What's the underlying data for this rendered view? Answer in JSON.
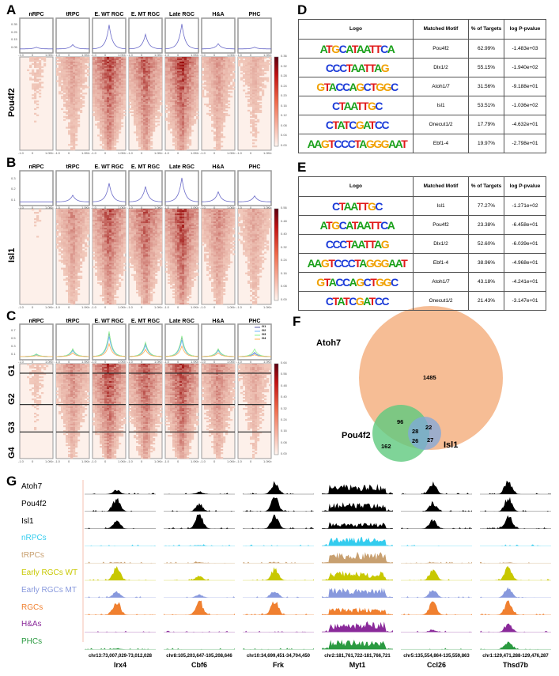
{
  "panels": {
    "A": "A",
    "B": "B",
    "C": "C",
    "D": "D",
    "E": "E",
    "F": "F",
    "G": "G"
  },
  "columns": [
    "nRPC",
    "tRPC",
    "E. WT RGC",
    "E. MT RGC",
    "Late RGC",
    "H&A",
    "PHC"
  ],
  "x_ticks": [
    "-1.0",
    "0",
    "1.0Kb"
  ],
  "heatmaps": [
    {
      "row_label": "Pou4f2",
      "profile_ticks": [
        "0.05",
        "0.15",
        "0.25",
        "0.35"
      ],
      "profile_peaks": [
        0.04,
        0.07,
        0.3,
        0.19,
        0.31,
        0.08,
        0.04
      ],
      "colorbar": [
        "0.00",
        "0.04",
        "0.08",
        "0.12",
        "0.16",
        "0.20",
        "0.24",
        "0.28",
        "0.32",
        "0.36"
      ]
    },
    {
      "row_label": "Isl1",
      "profile_ticks": [
        "0.1",
        "0.2",
        "0.3"
      ],
      "profile_peaks": [
        0.02,
        0.12,
        0.3,
        0.25,
        0.38,
        0.17,
        0.11
      ],
      "colorbar": [
        "0.00",
        "0.08",
        "0.16",
        "0.24",
        "0.32",
        "0.40",
        "0.48",
        "0.56"
      ]
    },
    {
      "row_labels": [
        "G1",
        "G2",
        "G3",
        "G4"
      ],
      "legend": [
        "G1",
        "G2",
        "G3",
        "G4"
      ],
      "series_colors": [
        "#5a5aa8",
        "#6fb4ff",
        "#8ef08e",
        "#ffb050"
      ],
      "profile_ticks": [
        "0.1",
        "0.3",
        "0.5",
        "0.7"
      ],
      "colorbar": [
        "0.00",
        "0.08",
        "0.16",
        "0.24",
        "0.32",
        "0.40",
        "0.48",
        "0.56",
        "0.64"
      ]
    }
  ],
  "table_headers": [
    "Logo",
    "Matched Motif",
    "% of Targets",
    "log P-pvalue"
  ],
  "table_D": [
    {
      "logo": "ATGCATAATTCA",
      "motif": "Pou4f2",
      "pct": "62.99%",
      "p": "-1.483e+03"
    },
    {
      "logo": "CCCTAATTAG",
      "motif": "Dlx1/2",
      "pct": "55.15%",
      "p": "-1.940e+02"
    },
    {
      "logo": "GTACCAGCTGGC",
      "motif": "Atoh1/7",
      "pct": "31.56%",
      "p": "-9.188e+01"
    },
    {
      "logo": "CTAATTGC",
      "motif": "Isl1",
      "pct": "53.51%",
      "p": "-1.036e+02"
    },
    {
      "logo": "CTATCGATCC",
      "motif": "Onecut1/2",
      "pct": "17.79%",
      "p": "-4.632e+01"
    },
    {
      "logo": "AAGTCCCTAGGGAAT",
      "motif": "Ebf1-4",
      "pct": "19.97%",
      "p": "-2.798e+01"
    }
  ],
  "table_E": [
    {
      "logo": "CTAATTGC",
      "motif": "Isl1",
      "pct": "77.27%",
      "p": "-1.271e+02"
    },
    {
      "logo": "ATGCATAATTCA",
      "motif": "Pou4f2",
      "pct": "23.38%",
      "p": "-6.458e+01"
    },
    {
      "logo": "CCCTAATTAG",
      "motif": "Dlx1/2",
      "pct": "52.60%",
      "p": "-6.039e+01"
    },
    {
      "logo": "AAGTCCCTAGGGAAT",
      "motif": "Ebf1-4",
      "pct": "38.96%",
      "p": "-4.968e+01"
    },
    {
      "logo": "GTACCAGCTGGC",
      "motif": "Atoh1/7",
      "pct": "43.18%",
      "p": "-4.241e+01"
    },
    {
      "logo": "CTATCGATCC",
      "motif": "Onecut1/2",
      "pct": "21.43%",
      "p": "-3.147e+01"
    }
  ],
  "venn": {
    "sets": [
      "Atoh7",
      "Pou4f2",
      "Isl1"
    ],
    "colors": [
      "#f4b183",
      "#5fc97e",
      "#7fa8dc"
    ],
    "counts": {
      "atoh7_only": "1485",
      "atoh7_pou4f2": "96",
      "all": "28",
      "atoh7_isl1": "22",
      "pou4f2_only": "162",
      "pou4f2_isl1": "26",
      "isl1_only": "27"
    }
  },
  "tracks": [
    {
      "name": "Atoh7",
      "color": "#000000"
    },
    {
      "name": "Pou4f2",
      "color": "#000000"
    },
    {
      "name": "Isl1",
      "color": "#000000"
    },
    {
      "name": "nRPCs",
      "color": "#33ccee"
    },
    {
      "name": "tRPCs",
      "color": "#c8a070"
    },
    {
      "name": "Early RGCs WT",
      "color": "#c8c800"
    },
    {
      "name": "Early RGCs MT",
      "color": "#8899dd"
    },
    {
      "name": "RGCs",
      "color": "#f08030"
    },
    {
      "name": "H&As",
      "color": "#8a2a9a"
    },
    {
      "name": "PHCs",
      "color": "#2a9a40"
    }
  ],
  "loci": [
    {
      "coord": "chr13:73,007,029-73,012,028",
      "gene": "Irx4"
    },
    {
      "coord": "chr8:105,203,647-105,208,646",
      "gene": "Cbf6"
    },
    {
      "coord": "chr10:34,699,451-34,704,450",
      "gene": "Frk"
    },
    {
      "coord": "chr2:181,761,722-181,766,721",
      "gene": "Myt1"
    },
    {
      "coord": "chr5:135,554,864-135,559,863",
      "gene": "Ccl26"
    },
    {
      "coord": "chr1:129,471,288-129,476,287",
      "gene": "Thsd7b"
    }
  ]
}
